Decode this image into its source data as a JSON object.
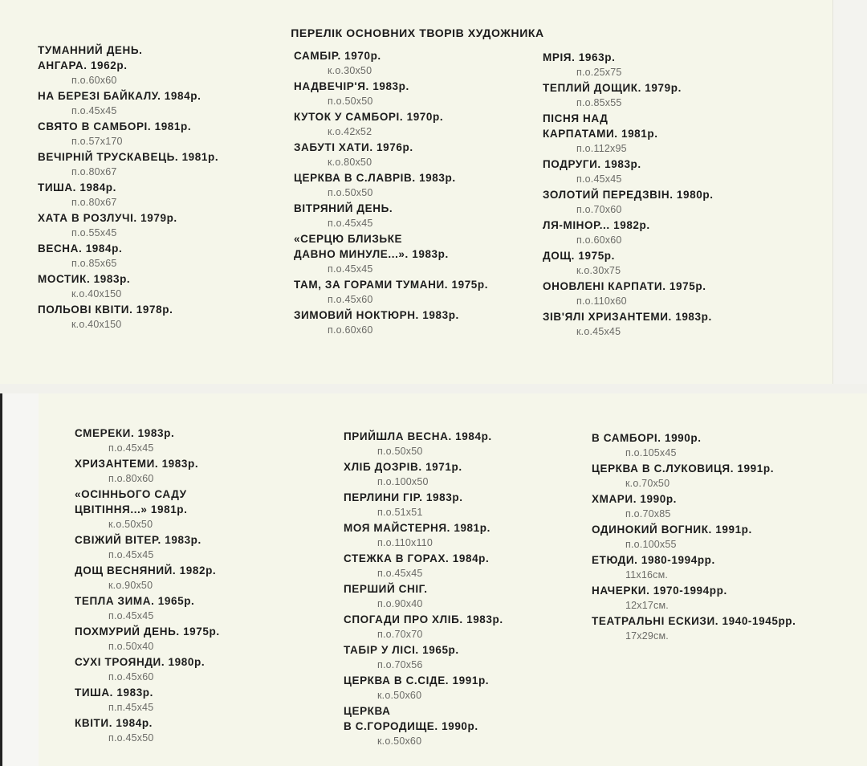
{
  "heading": "ПЕРЕЛІК ОСНОВНИХ ТВОРІВ ХУДОЖНИКА",
  "top": {
    "columns": [
      {
        "items": [
          {
            "title": [
              "ТУМАННИЙ ДЕНЬ.",
              "АНГАРА. 1962р."
            ],
            "size": "п.о.60х60"
          },
          {
            "title": [
              "НА БЕРЕЗІ БАЙКАЛУ. 1984р."
            ],
            "size": "п.о.45х45"
          },
          {
            "title": [
              "СВЯТО В САМБОРІ. 1981р."
            ],
            "size": "п.о.57х170"
          },
          {
            "title": [
              "ВЕЧІРНІЙ ТРУСКАВЕЦЬ. 1981р."
            ],
            "size": "п.о.80х67"
          },
          {
            "title": [
              "ТИША. 1984р."
            ],
            "size": "п.о.80х67"
          },
          {
            "title": [
              "ХАТА В РОЗЛУЧІ. 1979р."
            ],
            "size": "п.о.55х45"
          },
          {
            "title": [
              "ВЕСНА. 1984р."
            ],
            "size": "п.о.85х65"
          },
          {
            "title": [
              "МОСТИК. 1983р."
            ],
            "size": "к.о.40х150"
          },
          {
            "title": [
              "ПОЛЬОВІ КВІТИ. 1978р."
            ],
            "size": "к.о.40х150"
          }
        ]
      },
      {
        "items": [
          {
            "title": [
              "САМБІР. 1970р."
            ],
            "size": "к.о.30х50"
          },
          {
            "title": [
              "НАДВЕЧІР'Я. 1983р."
            ],
            "size": "п.о.50х50"
          },
          {
            "title": [
              "КУТОК У САМБОРІ. 1970р."
            ],
            "size": "к.о.42х52"
          },
          {
            "title": [
              "ЗАБУТІ ХАТИ. 1976р."
            ],
            "size": "к.о.80х50"
          },
          {
            "title": [
              "ЦЕРКВА В С.ЛАВРІВ. 1983р."
            ],
            "size": "п.о.50х50"
          },
          {
            "title": [
              "ВІТРЯНИЙ ДЕНЬ."
            ],
            "size": "п.о.45х45"
          },
          {
            "title": [
              "«СЕРЦЮ БЛИЗЬКЕ",
              "ДАВНО МИНУЛЕ...». 1983р."
            ],
            "size": "п.о.45х45"
          },
          {
            "title": [
              "ТАМ, ЗА ГОРАМИ ТУМАНИ. 1975р."
            ],
            "size": "п.о.45х60"
          },
          {
            "title": [
              "ЗИМОВИЙ НОКТЮРН. 1983р."
            ],
            "size": "п.о.60х60"
          }
        ]
      },
      {
        "items": [
          {
            "title": [
              "МРІЯ. 1963р."
            ],
            "size": "п.о.25х75"
          },
          {
            "title": [
              "ТЕПЛИЙ ДОЩИК. 1979р."
            ],
            "size": "п.о.85х55"
          },
          {
            "title": [
              "ПІСНЯ НАД",
              "КАРПАТАМИ. 1981р."
            ],
            "size": "п.о.112х95"
          },
          {
            "title": [
              "ПОДРУГИ. 1983р."
            ],
            "size": "п.о.45х45"
          },
          {
            "title": [
              "ЗОЛОТИЙ ПЕРЕДЗВІН. 1980р."
            ],
            "size": "п.о.70х60"
          },
          {
            "title": [
              "ЛЯ-МІНОР... 1982р."
            ],
            "size": "п.о.60х60"
          },
          {
            "title": [
              "ДОЩ. 1975р."
            ],
            "size": "к.о.30х75"
          },
          {
            "title": [
              "ОНОВЛЕНІ КАРПАТИ. 1975р."
            ],
            "size": "п.о.110х60"
          },
          {
            "title": [
              "ЗІВ'ЯЛІ ХРИЗАНТЕМИ. 1983р."
            ],
            "size": "к.о.45х45"
          }
        ]
      }
    ]
  },
  "bottom": {
    "columns": [
      {
        "items": [
          {
            "title": [
              "СМЕРЕКИ. 1983р."
            ],
            "size": "п.о.45х45"
          },
          {
            "title": [
              "ХРИЗАНТЕМИ. 1983р."
            ],
            "size": "п.о.80х60"
          },
          {
            "title": [
              "«ОСІННЬОГО САДУ",
              " ЦВІТІННЯ...» 1981р."
            ],
            "size": "к.о.50х50"
          },
          {
            "title": [
              "СВІЖИЙ ВІТЕР. 1983р."
            ],
            "size": "п.о.45х45"
          },
          {
            "title": [
              "ДОЩ ВЕСНЯНИЙ. 1982р."
            ],
            "size": "к.о.90х50"
          },
          {
            "title": [
              "ТЕПЛА ЗИМА. 1965р."
            ],
            "size": "п.о.45х45"
          },
          {
            "title": [
              "ПОХМУРИЙ ДЕНЬ. 1975р."
            ],
            "size": "п.о.50х40"
          },
          {
            "title": [
              "СУХІ ТРОЯНДИ. 1980р."
            ],
            "size": "п.о.45х60"
          },
          {
            "title": [
              "ТИША. 1983р."
            ],
            "size": "п.п.45х45"
          },
          {
            "title": [
              "КВІТИ. 1984р."
            ],
            "size": "п.о.45х50"
          }
        ]
      },
      {
        "items": [
          {
            "title": [
              "ПРИЙШЛА ВЕСНА. 1984р."
            ],
            "size": "п.о.50х50"
          },
          {
            "title": [
              "ХЛІБ ДОЗРІВ. 1971р."
            ],
            "size": "п.о.100х50"
          },
          {
            "title": [
              "ПЕРЛИНИ ГІР. 1983р."
            ],
            "size": "п.о.51х51"
          },
          {
            "title": [
              "МОЯ МАЙСТЕРНЯ. 1981р."
            ],
            "size": "п.о.110х110"
          },
          {
            "title": [
              "СТЕЖКА В ГОРАХ. 1984р."
            ],
            "size": "п.о.45х45"
          },
          {
            "title": [
              "ПЕРШИЙ СНІГ."
            ],
            "size": "п.о.90х40"
          },
          {
            "title": [
              "СПОГАДИ ПРО ХЛІБ. 1983р."
            ],
            "size": "п.о.70х70"
          },
          {
            "title": [
              "ТАБІР У ЛІСІ. 1965р."
            ],
            "size": "п.о.70х56"
          },
          {
            "title": [
              "ЦЕРКВА В С.СІДЕ. 1991р."
            ],
            "size": "к.о.50х60"
          },
          {
            "title": [
              "ЦЕРКВА",
              "В С.ГОРОДИЩЕ. 1990р."
            ],
            "size": "к.о.50х60"
          }
        ]
      },
      {
        "items": [
          {
            "title": [
              "В САМБОРІ. 1990р."
            ],
            "size": "п.о.105х45"
          },
          {
            "title": [
              "ЦЕРКВА В С.ЛУКОВИЦЯ. 1991р."
            ],
            "size": "к.о.70х50"
          },
          {
            "title": [
              "ХМАРИ. 1990р."
            ],
            "size": "п.о.70х85"
          },
          {
            "title": [
              "ОДИНОКИЙ ВОГНИК. 1991р."
            ],
            "size": "п.о.100х55"
          },
          {
            "title": [
              "ЕТЮДИ. 1980-1994рр."
            ],
            "size": "11х16см."
          },
          {
            "title": [
              "НАЧЕРКИ. 1970-1994рр."
            ],
            "size": "12х17см."
          },
          {
            "title": [
              "ТЕАТРАЛЬНІ ЕСКИЗИ. 1940-1945рр."
            ],
            "size": "17х29см."
          }
        ]
      }
    ]
  }
}
